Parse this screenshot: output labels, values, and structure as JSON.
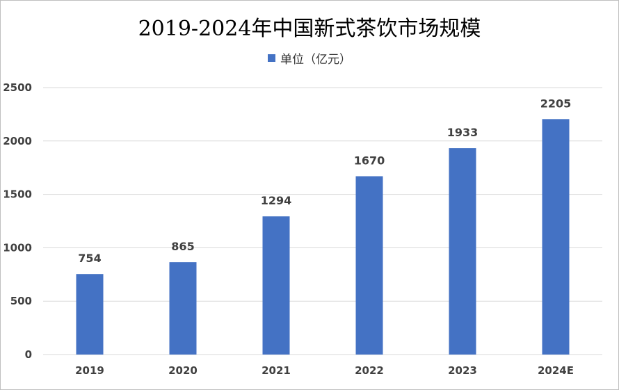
{
  "chart_data": {
    "type": "bar",
    "title": "2019-2024年中国新式茶饮市场规模",
    "categories": [
      "2019",
      "2020",
      "2021",
      "2022",
      "2023",
      "2024E"
    ],
    "series": [
      {
        "name": "单位（亿元）",
        "values": [
          754,
          865,
          1294,
          1670,
          1933,
          2205
        ]
      }
    ],
    "xlabel": "",
    "ylabel": "",
    "ylim": [
      0,
      2500
    ],
    "yticks": [
      0,
      500,
      1000,
      1500,
      2000,
      2500
    ],
    "grid": true,
    "legend_position": "top",
    "bar_color": "#4472c4",
    "gridline_color": "#d9d9d9"
  }
}
